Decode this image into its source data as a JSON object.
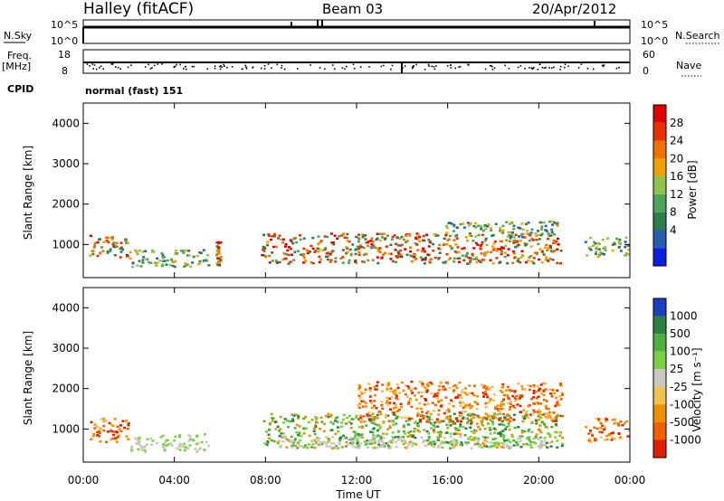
{
  "header": {
    "station": "Halley (fitACF)",
    "beam": "Beam 03",
    "date": "20/Apr/2012"
  },
  "strip_labels": {
    "nsky": "N.Sky",
    "nsky_ticks": [
      "10^5",
      "10^0"
    ],
    "nsearch": "N.Search",
    "nsearch_ticks": [
      "10^5",
      "10^0"
    ],
    "freq_label": "Freq.",
    "freq_unit": "[MHz]",
    "freq_ticks": [
      "18",
      "8"
    ],
    "nave": "Nave",
    "nave_ticks": [
      "60",
      "0"
    ],
    "cpid": "CPID",
    "cpid_value": "normal (fast) 151"
  },
  "chart_data": [
    {
      "type": "heatmap",
      "panel": "power",
      "ylabel": "Slant Range [km]",
      "y_ticks": [
        "1000",
        "2000",
        "3000",
        "4000"
      ],
      "ylim": [
        180,
        4500
      ],
      "colorbar_label": "Power [dB]",
      "colorbar_ticks": [
        "4",
        "8",
        "12",
        "16",
        "20",
        "24",
        "28"
      ],
      "colorbar_colors": [
        "#0b1fe0",
        "#2a5fb0",
        "#2e7d4a",
        "#4ea35a",
        "#8fc24a",
        "#f0a000",
        "#f07000",
        "#e83000",
        "#e00000"
      ],
      "echo_regions": [
        {
          "t_start": 0.2,
          "t_end": 2.0,
          "r_lo": 700,
          "r_hi": 1250,
          "level": "strong"
        },
        {
          "t_start": 2.0,
          "t_end": 5.5,
          "r_lo": 450,
          "r_hi": 900,
          "level": "moderate"
        },
        {
          "t_start": 5.8,
          "t_end": 6.0,
          "r_lo": 500,
          "r_hi": 1100,
          "level": "strong"
        },
        {
          "t_start": 7.8,
          "t_end": 21.0,
          "r_lo": 550,
          "r_hi": 1300,
          "level": "strong"
        },
        {
          "t_start": 15.8,
          "t_end": 20.8,
          "r_lo": 1200,
          "r_hi": 1600,
          "level": "moderate"
        },
        {
          "t_start": 22.0,
          "t_end": 23.9,
          "r_lo": 700,
          "r_hi": 1200,
          "level": "moderate"
        }
      ]
    },
    {
      "type": "heatmap",
      "panel": "velocity",
      "ylabel": "Slant Range [km]",
      "y_ticks": [
        "1000",
        "2000",
        "3000",
        "4000"
      ],
      "ylim": [
        180,
        4500
      ],
      "colorbar_label": "Velocity [m s⁻¹]",
      "colorbar_ticks": [
        "1000",
        "500",
        "100",
        "25",
        "-25",
        "-100",
        "-500",
        "-1000"
      ],
      "colorbar_colors": [
        "#1a3fc0",
        "#2a8040",
        "#4cb040",
        "#7ad040",
        "#c8c8c0",
        "#f0c050",
        "#f09000",
        "#f06000",
        "#e02000"
      ],
      "xlabel": "Time UT",
      "x_ticks": [
        "00:00",
        "04:00",
        "08:00",
        "12:00",
        "16:00",
        "20:00",
        "00:00"
      ],
      "xlim": [
        0,
        24
      ],
      "echo_regions": [
        {
          "t_start": 0.2,
          "t_end": 2.0,
          "r_lo": 700,
          "r_hi": 1300,
          "level": "receding"
        },
        {
          "t_start": 2.0,
          "t_end": 5.5,
          "r_lo": 450,
          "r_hi": 900,
          "level": "ground"
        },
        {
          "t_start": 7.8,
          "t_end": 21.0,
          "r_lo": 550,
          "r_hi": 1400,
          "level": "approaching"
        },
        {
          "t_start": 8.5,
          "t_end": 20.5,
          "r_lo": 550,
          "r_hi": 850,
          "level": "ground"
        },
        {
          "t_start": 12.0,
          "t_end": 21.0,
          "r_lo": 1200,
          "r_hi": 2200,
          "level": "receding"
        },
        {
          "t_start": 22.0,
          "t_end": 23.9,
          "r_lo": 700,
          "r_hi": 1300,
          "level": "receding"
        }
      ]
    }
  ]
}
